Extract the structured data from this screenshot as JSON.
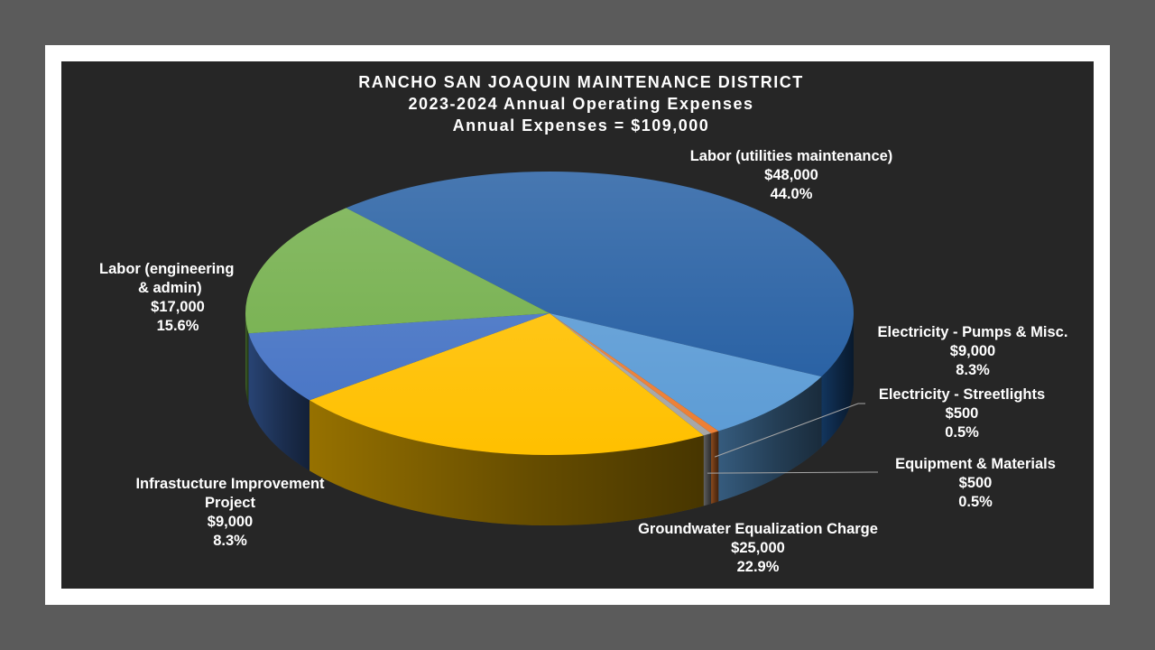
{
  "chart_data": {
    "type": "pie",
    "title": [
      "RANCHO SAN JOAQUIN MAINTENANCE DISTRICT",
      "2023-2024 Annual Operating Expenses",
      "Annual Expenses = $109,000"
    ],
    "slices": [
      {
        "name": "Labor (utilities maintenance)",
        "value": 48000,
        "value_label": "$48,000",
        "percent_label": "44.0%",
        "color": "#1f5aa0"
      },
      {
        "name": "Electricity - Pumps & Misc.",
        "value": 9000,
        "value_label": "$9,000",
        "percent_label": "8.3%",
        "color": "#5b9bd5"
      },
      {
        "name": "Electricity - Streetlights",
        "value": 500,
        "value_label": "$500",
        "percent_label": "0.5%",
        "color": "#ed7d31"
      },
      {
        "name": "Equipment & Materials",
        "value": 500,
        "value_label": "$500",
        "percent_label": "0.5%",
        "color": "#a5a5a5"
      },
      {
        "name": "Groundwater Equalization Charge",
        "value": 25000,
        "value_label": "$25,000",
        "percent_label": "22.9%",
        "color": "#ffc000"
      },
      {
        "name": "Infrastucture Improvement Project",
        "value": 9000,
        "value_label": "$9,000",
        "percent_label": "8.3%",
        "color": "#4472c4"
      },
      {
        "name": "Labor (engineering & admin)",
        "value": 17000,
        "value_label": "$17,000",
        "percent_label": "15.6%",
        "color": "#70ad47"
      }
    ]
  },
  "labels": {
    "labor_utilities": {
      "line1": "Labor (utilities maintenance)"
    },
    "electricity_pumps": {
      "line1": "Electricity - Pumps & Misc."
    },
    "electricity_streetlights": {
      "line1": "Electricity - Streetlights"
    },
    "equipment": {
      "line1": "Equipment & Materials"
    },
    "groundwater": {
      "line1": "Groundwater Equalization Charge"
    },
    "infrastructure": {
      "line1": "Infrastucture Improvement",
      "line2": "Project"
    },
    "labor_engineering": {
      "line1": "Labor (engineering",
      "line2": "& admin)"
    }
  }
}
